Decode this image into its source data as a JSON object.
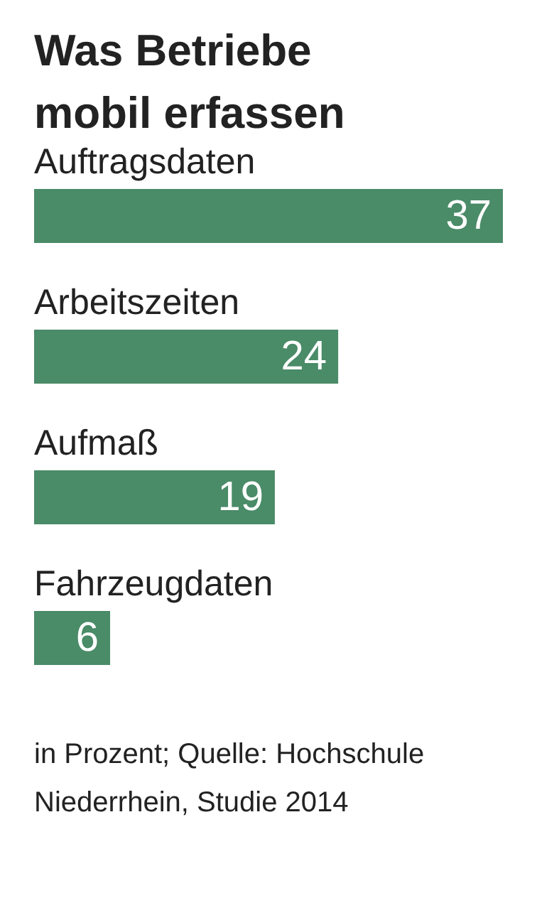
{
  "chart_data": {
    "type": "bar",
    "orientation": "horizontal",
    "title": "Was Betriebe mobil erfassen",
    "categories": [
      "Auftragsdaten",
      "Arbeitszeiten",
      "Aufmaß",
      "Fahrzeugdaten"
    ],
    "values": [
      37,
      24,
      19,
      6
    ],
    "color": "#4a8b68",
    "data_labels": true,
    "grid": false,
    "legend": false,
    "annotations": [
      "in Prozent; Quelle: Hochschule Niederrhein, Studie 2014"
    ]
  }
}
